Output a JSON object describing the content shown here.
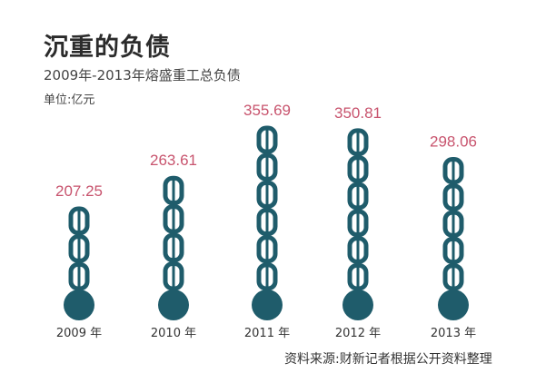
{
  "title": "沉重的负债",
  "subtitle": "2009年-2013年熔盛重工总负债",
  "unit": "单位:亿元",
  "source": "资料来源:财新记者根据公开资料整理",
  "colors": {
    "chain": "#1f5c6b",
    "value_text": "#c8546e"
  },
  "chart_data": {
    "type": "bar",
    "title": "沉重的负债",
    "subtitle": "2009年-2013年熔盛重工总负债",
    "ylabel": "单位:亿元",
    "categories": [
      "2009 年",
      "2010 年",
      "2011 年",
      "2012 年",
      "2013 年"
    ],
    "values": [
      207.25,
      263.61,
      355.69,
      350.81,
      298.06
    ],
    "value_labels": [
      "207.25",
      "263.61",
      "355.69",
      "350.81",
      "298.06"
    ],
    "ylim": [
      0,
      400
    ],
    "grid": false,
    "legend": "none",
    "mark_style": "chain-with-ball"
  }
}
